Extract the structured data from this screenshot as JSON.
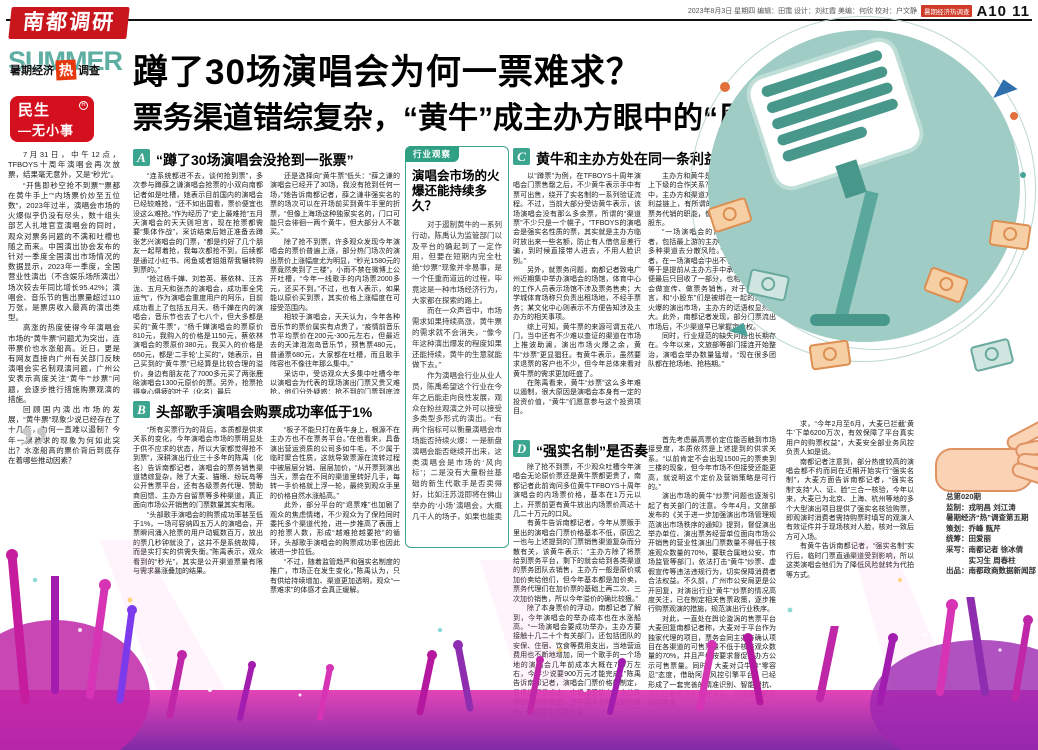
{
  "masthead": {
    "logo": "南都调研",
    "dateline": "2023年8月3日 星期四 编辑：田霭 设计：刘红霞 美编：何欣 校对：户文静",
    "badge": "暑期经济热调查",
    "page_no": "A10 11"
  },
  "headline": {
    "line1": "蹲了30场演唱会为何一票难求？",
    "line2": "票务渠道错综复杂，“黄牛”成主办方眼中的“风险投资人”"
  },
  "left_rail": {
    "summer_word": "SUMMER",
    "summer_overlay": {
      "t1": "暑期经济",
      "hot": "热",
      "t2": "调查"
    },
    "minsheng_badge": {
      "line1": "民生",
      "line2": "—无小事",
      "reg": "R"
    },
    "quote_mark": "”",
    "intro": [
      "7月31日，中午12点，TFBOYS十周年演唱会再次放票，结果毫无意外，又是“秒光”。",
      "“开售即秒空抢不到票”“票都在黄牛手上”“内场票价炒至五位数”，2023年过半，演唱会市场的火爆似乎仍没有尽头，数十组头部艺人扎堆官宣演唱会的同时，观众对票务问题的不满和吐槽也随之而来。中国演出协会发布的针对一季度全国演出市场情况的数据显示，2023年一季度，全国营业性演出（不含娱乐场所演出）场次较去年同比增长95.42%；演唱会、音乐节的售出票量超过110万张，是票房收入最高的演出类型。",
      "高涨的热度使得今年演唱会市场的“黄牛票”问题尤为突出，连带票价也水涨船高。近日，更是有网友直接向广州有关部门反映演唱会实名制观演问题，广州公安表示高度关注“黄牛”“炒票”问题，会逐步推行措施购票观演的措施。",
      "回顾国内演出市场的发展，“黄牛票”现象少说已经存在了十几年，为何一直难以遏制？今年一票难求的现象为何如此突出？水涨船高的票价背后到底存在着哪些推动因素？"
    ]
  },
  "sections": {
    "a": {
      "badge": "A",
      "title": "“蹲了30场演唱会没抢到一张票”",
      "col1": [
        "“连系统都进不去，谈何抢到票”，多次参与蹲薛之谦演唱会抢票的小双向南都记者如是吐槽，她表示目前国内的演唱会已经较难抢，“还不如出国看，票价便宜也没这么难抢。”作为经历了“史上最难抢”五月天演唱会的天天则坦言，现在抢票都需要“集体作战”，采访结束后她正准备去蹲张艺兴演唱会的门票，“都是约好了几个朋友一起帮着抢，我每次都抢不到，后续都是通过小红书、闲鱼或者姐姐帮我辗转购到票的。”",
        "“抢过杨千嬅、刘若英、蔡依林、汪苏泷、五月天和张杰的演唱会，成功率全凭运气”，作为演唱会重度用户的阿乐，目前成功看上了包括五月天、杨千嬅在内的演唱会，音乐节也去了七八个，但大多都是买的“黄牛票”，“杨千嬅演唱会的票原价810元，我购入的价格是1150元，蔡依林演唱会的票原价380元，我买入的价格是650元，都是‘二手轮’上买的”，她表示，自己买到的“黄牛票”已经算是比较合理的溢价，身边有朋友花了7000多元买了两张鹿晗演唱会1300元原价的票。另外，抢票抢得身心俱疲的叶子（化名）最后"
      ],
      "col2": [
        "还是选择向“黄牛票”低头：“薛之谦的演唱会已经开了30场，我没有抢到任何一场，”她告诉南都记者，薛之谦非强实名的票的场次可以在开场前买到黄牛手里的折票，“但像上海场这种独家实名的，门口可能只会徘徊一两个黄牛，但大部分人不敢买。”",
        "除了抢不到票，许多观众发现今年演唱会的票价普遍上涨，部分热门场次的演出票价上涨幅度尤为明显，“秒光1580元的票竟然卖到了三楼”，小雨不禁在微博上公开吐槽，“今年一线歌手的内场票2000多元，还买不到。”不过，也有人表示，如果能以原价买到票，其实价格上涨幅度在可接受范围内。",
        "相较于演唱会，天天认为，今年各种音乐节的票价属实有点贵了，“疫情前音乐节平均票价在200元-300元左右，但最近去的天津泡泡岛音乐节，预售票480元，普通票680元，大家都在吐槽，而且歌手阵容也不像往年那么集中。”",
        "采访中，受访观众大多集中吐槽今年以演唱会为代表的现场演出门票又贵又难抢，他们分外疑惑：抢不到的门票到底流向了哪里？被吐槽的黄牛“炒票”现象为何如此难遏制？"
      ]
    },
    "b": {
      "badge": "B",
      "title": "头部歌手演唱会购票成功率低于1%",
      "col1": [
        "“所有买票行为的背后，本质都是供求关系的变化，今年演唱会市场的票明显处于供不应求的状态，所以大家都觉得抢不到票”，深耕演出行业三十多年的陈禹（化名）告诉南都记者，演唱会的票务销售渠道错综复杂，除了大麦、猫眼、纷玩岛等公开售票平台，还有各级票务代理、赞助商回馈、主办方自留票等多种渠道，真正面向市场公开销售的门票数量其实有限。",
        "“头部歌手演唱会的购票成功率甚至低于1%，一场可容纳四五万人的演唱会，开票瞬间涌入抢票的用户动辄数百万，放出的票几秒钟就没了，这并不是系统故障，而是实打实的供需失衡。”陈禹表示，观众看到的“秒光”，其实是公开渠道票量有限与需求暴涨叠加的结果。"
      ],
      "col2": [
        "“板子不能只打在黄牛身上，根源不在主办方也不在票务平台。”在他看来，具备演出营运资质的公司多如牛毛，不少属于临时聚合性质，这就导致票源在流转过程中被层层分销、层层加价，“从开票到演出当天，票会在不同的渠道里转好几手，每转一手价格就上浮一轮，最终到观众手里的价格自然水涨船高。”",
        "此外，部分平台的“退票难”也加剧了观众的焦虑情绪，不少观众为了保险同时委托多个渠道代抢，进一步推高了表面上的抢票人数，形成“越难抢越要抢”的循环，头部歌手演唱会的购票成功率也因此被进一步拉低。",
        "“不过，随着监管趋严和强实名制度的推广，市场正在发生变化，”陈禹认为，只有供给持续增加、渠道更加透明，观众“一票难求”的体感才会真正缓解。"
      ]
    },
    "c": {
      "badge": "C",
      "title": "黄牛和主办方处在同一条利益链？",
      "col1": [
        "以“蹲票”为例，在TFBOYS十周年演唱会门票售罄之后，不少黄牛表示手中有票可出售，绕开了实名制的一系列验证流程。不过，当前大部分受访黄牛表示，该场演唱会没有那么多余票，所谓的“渠道票”不少只是一个幌子，“TFBOYS的演唱会是强实名性质的票，其实就是主办方临时放出来一些名额，防止有人借信息差行骗，到时候直接带人进去，不用人脸识别。”",
        "另外，就票务问题，南都记者致电广州近期集中举办演唱会的场馆，体育中心的工作人员表示场馆不涉及票务售卖；大学城体育场称只负责出租场地，不经手票务；某文化中心则表示不方便告知涉及主办方的相关事项。",
        "综上可知，黄牛票的来源可谓五花八门，当中还有不少难以查证的渠道在市场上推波助澜，演出市场火爆之余，黄牛“炒票”更显猖狂。有黄牛表示，虽然要求退票的客户也不少，但今年总体来看对黄牛票的需求更加旺盛了。",
        "在陈禹看来，黄牛“炒票”这么多年难以遏制，很大原因是演唱会本身有一定的投资价值，“黄牛”们愿意参与这个投资项目。"
      ],
      "col2": [
        "主办方和黄牛是否在某种程度上处于上下级的合作关系？在演唱会的运作过程中，主办方和渠道方、票务方处在同一条利益链上，有所谓的“黄牛”其实也承担着票务代销的职能，像是一场演出的众多小股东。",
        "“一场演唱会的背后有众多的投资者，包括最上游的主办方，他们希望通过多种渠道去分散风险。”陈禹告诉南都记者，在一场演唱会中出不了手的票，黄牛等于是提前从主办方手中承接了库存，即便最后只回收了一部分，也相当于帮演唱会做宣传、做票务销售，对于主办方而言，和“小股东”们是被绑在一起的。面对火爆的演出市场，主办方的话语权显然更大。此外，南都记者发现，部分门票流出市场后，不少渠道早已掌握定价权。",
        "同时，行业规范的缺失问题也长期存在。今年以来，文旅部等部门接连开始整治，演唱会举办数量猛增，“现在很多团队都在抢场地、抢档期。”"
      ]
    },
    "d": {
      "badge": "D",
      "title": "“强实名制”是否奏效？",
      "col1": [
        "除了抢不到票，不少观众吐槽今年演唱会无论原价票还是黄牛票都更贵了，南都记者此前询问多位黄牛TFBOYS十周年演唱会的内场票价格，基本在1万元以上，开票前更有黄牛放出内场票价高达十几二十万元的口风。",
        "有黄牛告诉南都记者，今年从票贩手里出的演唱会门票价格基本不低，原因之一也与上述提到的门票销售渠道复杂而分散有关，该黄牛表示：“主办方除了将票给到票务平台，剩下的就会给到各类渠道的票务团队去销售，主办方一般是原价或加价卖给他们，但今年基本都是加价卖，票务代理们在加价票的基础上再二次、三次加价销售，所以今年溢价的确比较狠。”",
        "除了本身票价的浮动，南都记者了解到，今年演唱会的举办成本也在水涨船高。“一场演唱会要成功举办，主办方要接触十几二十个有关部门，还包括团队的安保、住宿、饮食等费用支出，当地营运费用也不断地增加，同一个歌手的一个场地的演唱会几年前成本大概在700万左右，今年少说要900万元才能完成。”陈禹告诉南都记者，演唱会门票价格的制定，是根据项目成本、市场接受能力、座位数等因素综合确定，当中成本与明星影响最大，头部歌手的票价会"
      ],
      "col2": [
        "首先考虑最高票价定位能否触到市场接受度，本质依然是上述提到的供求关系。“以前肯定不会出现1500元的票卖到三楼的现象，但今年市场不但接受还能更高，就说明这个定价及营销策略是可行的。”",
        "演出市场的黄牛“炒票”问题也逐渐引起了有关部门的注意。今年4月，文旅部发布的《关于进一步加强演出市场管理规范演出市场秩序的通知》提到，督促演出举办单位、演出票务经营单位面向市场公开销售的营业性演出门票数量不得低于核准观众数量的70%，要联合属地公安、市场监管等部门，依法打击“黄牛”炒票、虚假宣传等违法违规行为，切实保障消费者合法权益。不久前，广州市公安局更是公开回复，对演出行业“黄牛”炒票的情况高度关注，已在制定相关售票政策，逐步推行购票观演的措施，规范演出行业秩序。",
        "对此，一直处在舆论漩涡的售票平台大麦回复南都记者称，大麦对于平台作为独家代理的项目，票务会同主办方确认项目在各渠道的可售票量不低于核准观众数量的70%，并且严格按要求督促主办方公示可售票量。同时，大麦对黄牛持“零容忍”态度，借助阿里风控引擎平台，已经形成了一套完善的精准识别、智能对抗、实时拦截的平台治理体系，可精准拦截机刷购票需"
      ],
      "col3": [
        "求，“今年2月至6月，大麦已拦截‘黄牛’下单6200万次，有效保障了平台真实用户的购票权益”，大麦安全部业务风控负责人如是说。",
        "南都记者注意到，部分热度较高的演唱会都不约而同在近期开始实行“强实名制”，大麦方面告诉南都记者，“强实名制”支持“人、证、脸”三合一核验，今年以来，大麦已为北京、上海、杭州等地的多个大型演出项目提供了强实名核验购票，即观演时消费者需持购票时填写的观演人有效证件并于现场核对人脸，核对一致后方可入场。",
        "有黄牛告诉南都记者，“强实名制”实行后，临时门票直通渠道受到影响，所以这类演唱会他们为了降低风险就转为代拍等方式。"
      ]
    }
  },
  "observer_box": {
    "label": "行业观察",
    "title": "演唱会市场的火爆还能持续多久？",
    "paragraphs": [
      "对于遏制黄牛的一系列行动，陈禹认为监管部门以及平台的确起到了一定作用，但要在短期内完全杜绝“炒票”现象并非易事，是一个任重而道远的过程，毕竟这是一种市场经济行为，大家都在探索的路上。",
      "而在一众声音中，市场需求如果持续高涨，黄牛票的需求就不会消失，“像今年这种演出爆发的程度如果还能持续，黄牛的生意就能做下去。”",
      "作为演唱会行业从业人员，陈禹希望这个行业在今年之后能走向良性发展，观众在粉丝观演之外可以接受多类型多形式的演出。“有两个指标可以衡量演唱会市场能否持续火爆：一是新盘演唱会能否继续开出来，这类演唱会是市场的‘风向标’；二是没有大量粉丝基础的新生代歌手是否卖得好，比如汪苏泷即将在佛山举办的‘小场’演唱会，大概几千人的场子，如果也能卖空，那接下来或许会有更多歌手入场，届时市场就是向全面繁荣发展的景象。”"
    ]
  },
  "credits": {
    "lines": [
      "总第020期",
      "监制：戎明昌 刘江涛",
      "暑期经济“热”调查第五期",
      "策划：乔峰 甄芹",
      "统筹：田爱丽",
      "采写：南都记者 徐冰倩",
      "　　　实习生 周春柱",
      "出品：南都政商数据新闻部"
    ]
  },
  "colors": {
    "masthead_red": "#c9161d",
    "hot_red": "#e8380d",
    "badge_red": "#d40f1e",
    "section_green": "#3ba58f",
    "circle_teal": "#9fccc4",
    "mic_teal": "#47978b",
    "crowd_magenta": "#c51d9e",
    "crowd_purple": "#7a1fa2",
    "note_orange": "#dd8f52"
  }
}
